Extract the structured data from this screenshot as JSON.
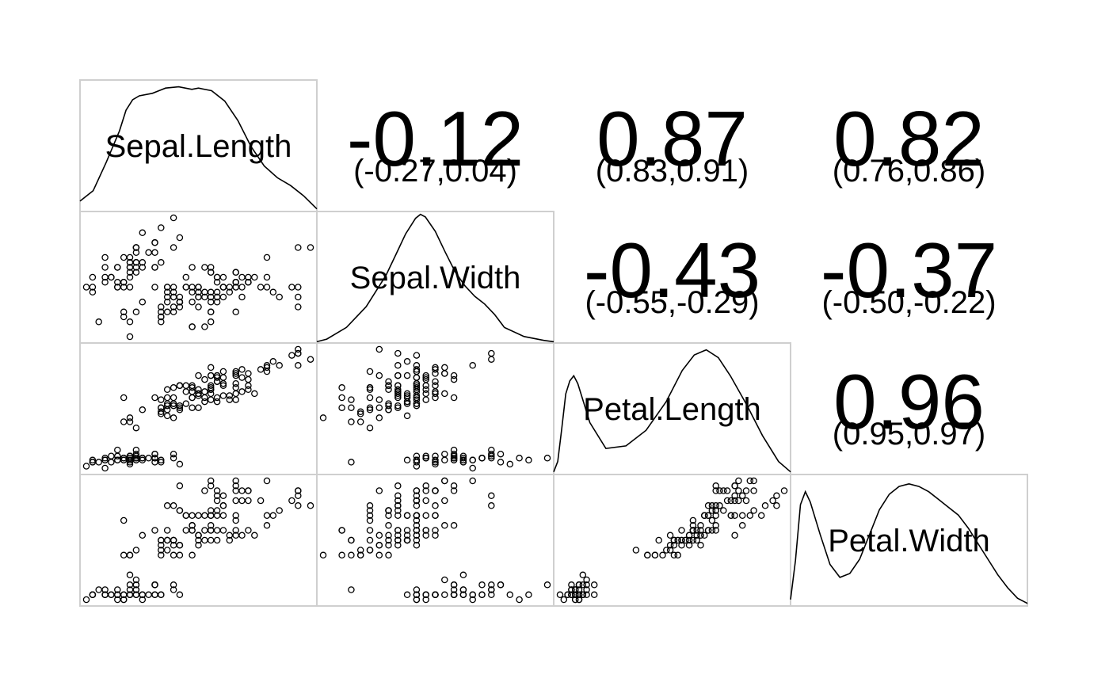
{
  "chart_data": {
    "type": "scatter-matrix",
    "variables": [
      {
        "name": "Sepal.Length",
        "range": [
          4.3,
          7.9
        ],
        "density": [
          [
            4.3,
            0.08
          ],
          [
            4.5,
            0.16
          ],
          [
            4.7,
            0.38
          ],
          [
            4.9,
            0.62
          ],
          [
            5.0,
            0.78
          ],
          [
            5.1,
            0.86
          ],
          [
            5.2,
            0.89
          ],
          [
            5.4,
            0.91
          ],
          [
            5.5,
            0.93
          ],
          [
            5.6,
            0.95
          ],
          [
            5.8,
            0.96
          ],
          [
            6.0,
            0.94
          ],
          [
            6.1,
            0.95
          ],
          [
            6.3,
            0.93
          ],
          [
            6.5,
            0.85
          ],
          [
            6.7,
            0.7
          ],
          [
            6.9,
            0.5
          ],
          [
            7.1,
            0.35
          ],
          [
            7.3,
            0.26
          ],
          [
            7.5,
            0.2
          ],
          [
            7.7,
            0.12
          ],
          [
            7.9,
            0.02
          ]
        ]
      },
      {
        "name": "Sepal.Width",
        "range": [
          2.0,
          4.4
        ],
        "density": [
          [
            2.0,
            0.01
          ],
          [
            2.1,
            0.03
          ],
          [
            2.3,
            0.12
          ],
          [
            2.5,
            0.28
          ],
          [
            2.7,
            0.52
          ],
          [
            2.8,
            0.68
          ],
          [
            2.9,
            0.84
          ],
          [
            3.0,
            0.96
          ],
          [
            3.05,
            0.99
          ],
          [
            3.1,
            0.97
          ],
          [
            3.2,
            0.86
          ],
          [
            3.3,
            0.7
          ],
          [
            3.4,
            0.55
          ],
          [
            3.5,
            0.44
          ],
          [
            3.6,
            0.36
          ],
          [
            3.7,
            0.3
          ],
          [
            3.8,
            0.22
          ],
          [
            3.9,
            0.12
          ],
          [
            4.1,
            0.05
          ],
          [
            4.3,
            0.02
          ],
          [
            4.4,
            0.01
          ]
        ]
      },
      {
        "name": "Petal.Length",
        "range": [
          1.0,
          6.9
        ],
        "density": [
          [
            1.0,
            0.02
          ],
          [
            1.1,
            0.1
          ],
          [
            1.2,
            0.35
          ],
          [
            1.3,
            0.62
          ],
          [
            1.4,
            0.72
          ],
          [
            1.5,
            0.76
          ],
          [
            1.6,
            0.7
          ],
          [
            1.7,
            0.6
          ],
          [
            1.9,
            0.4
          ],
          [
            2.3,
            0.2
          ],
          [
            2.8,
            0.22
          ],
          [
            3.3,
            0.34
          ],
          [
            3.8,
            0.56
          ],
          [
            4.2,
            0.8
          ],
          [
            4.5,
            0.92
          ],
          [
            4.8,
            0.96
          ],
          [
            5.1,
            0.9
          ],
          [
            5.4,
            0.76
          ],
          [
            5.8,
            0.54
          ],
          [
            6.2,
            0.3
          ],
          [
            6.6,
            0.1
          ],
          [
            6.9,
            0.02
          ]
        ]
      },
      {
        "name": "Petal.Width",
        "range": [
          0.1,
          2.5
        ],
        "density": [
          [
            0.1,
            0.05
          ],
          [
            0.15,
            0.35
          ],
          [
            0.2,
            0.78
          ],
          [
            0.25,
            0.88
          ],
          [
            0.3,
            0.8
          ],
          [
            0.4,
            0.55
          ],
          [
            0.5,
            0.32
          ],
          [
            0.6,
            0.22
          ],
          [
            0.7,
            0.25
          ],
          [
            0.8,
            0.36
          ],
          [
            0.9,
            0.55
          ],
          [
            1.0,
            0.74
          ],
          [
            1.1,
            0.86
          ],
          [
            1.2,
            0.92
          ],
          [
            1.3,
            0.94
          ],
          [
            1.4,
            0.92
          ],
          [
            1.5,
            0.88
          ],
          [
            1.6,
            0.82
          ],
          [
            1.7,
            0.76
          ],
          [
            1.8,
            0.7
          ],
          [
            1.9,
            0.6
          ],
          [
            2.0,
            0.48
          ],
          [
            2.1,
            0.36
          ],
          [
            2.2,
            0.24
          ],
          [
            2.3,
            0.14
          ],
          [
            2.4,
            0.06
          ],
          [
            2.5,
            0.02
          ]
        ]
      }
    ],
    "correlations": [
      {
        "row": 0,
        "col": 1,
        "r": "-0.12",
        "ci": "(-0.27,0.04)"
      },
      {
        "row": 0,
        "col": 2,
        "r": "0.87",
        "ci": "(0.83,0.91)"
      },
      {
        "row": 0,
        "col": 3,
        "r": "0.82",
        "ci": "(0.76,0.86)"
      },
      {
        "row": 1,
        "col": 2,
        "r": "-0.43",
        "ci": "(-0.55,-0.29)"
      },
      {
        "row": 1,
        "col": 3,
        "r": "-0.37",
        "ci": "(-0.50,-0.22)"
      },
      {
        "row": 2,
        "col": 3,
        "r": "0.96",
        "ci": "(0.95,0.97)"
      }
    ],
    "observations": [
      [
        5.1,
        3.5,
        1.4,
        0.2
      ],
      [
        4.9,
        3.0,
        1.4,
        0.2
      ],
      [
        4.7,
        3.2,
        1.3,
        0.2
      ],
      [
        4.6,
        3.1,
        1.5,
        0.2
      ],
      [
        5.0,
        3.6,
        1.4,
        0.2
      ],
      [
        5.4,
        3.9,
        1.7,
        0.4
      ],
      [
        4.6,
        3.4,
        1.4,
        0.3
      ],
      [
        5.0,
        3.4,
        1.5,
        0.2
      ],
      [
        4.4,
        2.9,
        1.4,
        0.2
      ],
      [
        4.9,
        3.1,
        1.5,
        0.1
      ],
      [
        5.4,
        3.7,
        1.5,
        0.2
      ],
      [
        4.8,
        3.4,
        1.6,
        0.2
      ],
      [
        4.8,
        3.0,
        1.4,
        0.1
      ],
      [
        4.3,
        3.0,
        1.1,
        0.1
      ],
      [
        5.8,
        4.0,
        1.2,
        0.2
      ],
      [
        5.7,
        4.4,
        1.5,
        0.4
      ],
      [
        5.4,
        3.9,
        1.3,
        0.4
      ],
      [
        5.1,
        3.5,
        1.4,
        0.3
      ],
      [
        5.7,
        3.8,
        1.7,
        0.3
      ],
      [
        5.1,
        3.8,
        1.5,
        0.3
      ],
      [
        5.4,
        3.4,
        1.7,
        0.2
      ],
      [
        5.1,
        3.7,
        1.5,
        0.4
      ],
      [
        4.6,
        3.6,
        1.0,
        0.2
      ],
      [
        5.1,
        3.3,
        1.7,
        0.5
      ],
      [
        4.8,
        3.4,
        1.9,
        0.2
      ],
      [
        5.0,
        3.0,
        1.6,
        0.2
      ],
      [
        5.0,
        3.4,
        1.6,
        0.4
      ],
      [
        5.2,
        3.5,
        1.5,
        0.2
      ],
      [
        5.2,
        3.4,
        1.4,
        0.2
      ],
      [
        4.7,
        3.2,
        1.6,
        0.2
      ],
      [
        4.8,
        3.1,
        1.6,
        0.2
      ],
      [
        5.4,
        3.4,
        1.5,
        0.4
      ],
      [
        5.2,
        4.1,
        1.5,
        0.1
      ],
      [
        5.5,
        4.2,
        1.4,
        0.2
      ],
      [
        4.9,
        3.1,
        1.5,
        0.2
      ],
      [
        5.0,
        3.2,
        1.2,
        0.2
      ],
      [
        5.5,
        3.5,
        1.3,
        0.2
      ],
      [
        4.9,
        3.6,
        1.4,
        0.1
      ],
      [
        4.4,
        3.0,
        1.3,
        0.2
      ],
      [
        5.1,
        3.4,
        1.5,
        0.2
      ],
      [
        5.0,
        3.5,
        1.3,
        0.3
      ],
      [
        4.5,
        2.3,
        1.3,
        0.3
      ],
      [
        4.4,
        3.2,
        1.3,
        0.2
      ],
      [
        5.0,
        3.5,
        1.6,
        0.6
      ],
      [
        5.1,
        3.8,
        1.9,
        0.4
      ],
      [
        4.8,
        3.0,
        1.4,
        0.3
      ],
      [
        5.1,
        3.8,
        1.6,
        0.2
      ],
      [
        4.6,
        3.2,
        1.4,
        0.2
      ],
      [
        5.3,
        3.7,
        1.5,
        0.2
      ],
      [
        5.0,
        3.3,
        1.4,
        0.2
      ],
      [
        7.0,
        3.2,
        4.7,
        1.4
      ],
      [
        6.4,
        3.2,
        4.5,
        1.5
      ],
      [
        6.9,
        3.1,
        4.9,
        1.5
      ],
      [
        5.5,
        2.3,
        4.0,
        1.3
      ],
      [
        6.5,
        2.8,
        4.6,
        1.5
      ],
      [
        5.7,
        2.8,
        4.5,
        1.3
      ],
      [
        6.3,
        3.3,
        4.7,
        1.6
      ],
      [
        4.9,
        2.4,
        3.3,
        1.0
      ],
      [
        6.6,
        2.9,
        4.6,
        1.3
      ],
      [
        5.2,
        2.7,
        3.9,
        1.4
      ],
      [
        5.0,
        2.0,
        3.5,
        1.0
      ],
      [
        5.9,
        3.0,
        4.2,
        1.5
      ],
      [
        6.0,
        2.2,
        4.0,
        1.0
      ],
      [
        6.1,
        2.9,
        4.7,
        1.4
      ],
      [
        5.6,
        2.9,
        3.6,
        1.3
      ],
      [
        6.7,
        3.1,
        4.4,
        1.4
      ],
      [
        5.6,
        3.0,
        4.5,
        1.5
      ],
      [
        5.8,
        2.7,
        4.1,
        1.0
      ],
      [
        6.2,
        2.2,
        4.5,
        1.5
      ],
      [
        5.6,
        2.5,
        3.9,
        1.1
      ],
      [
        5.9,
        3.2,
        4.8,
        1.8
      ],
      [
        6.1,
        2.8,
        4.0,
        1.3
      ],
      [
        6.3,
        2.5,
        4.9,
        1.5
      ],
      [
        6.1,
        2.8,
        4.7,
        1.2
      ],
      [
        6.4,
        2.9,
        4.3,
        1.3
      ],
      [
        6.6,
        3.0,
        4.4,
        1.4
      ],
      [
        6.8,
        2.8,
        4.8,
        1.4
      ],
      [
        6.7,
        3.0,
        5.0,
        1.7
      ],
      [
        6.0,
        2.9,
        4.5,
        1.5
      ],
      [
        5.7,
        2.6,
        3.5,
        1.0
      ],
      [
        5.5,
        2.4,
        3.8,
        1.1
      ],
      [
        5.5,
        2.4,
        3.7,
        1.0
      ],
      [
        5.8,
        2.7,
        3.9,
        1.2
      ],
      [
        6.0,
        2.7,
        5.1,
        1.6
      ],
      [
        5.4,
        3.0,
        4.5,
        1.5
      ],
      [
        6.0,
        3.4,
        4.5,
        1.6
      ],
      [
        6.7,
        3.1,
        4.7,
        1.5
      ],
      [
        6.3,
        2.3,
        4.4,
        1.3
      ],
      [
        5.6,
        3.0,
        4.1,
        1.3
      ],
      [
        5.5,
        2.5,
        4.0,
        1.3
      ],
      [
        5.5,
        2.6,
        4.4,
        1.2
      ],
      [
        6.1,
        3.0,
        4.6,
        1.4
      ],
      [
        5.8,
        2.6,
        4.0,
        1.2
      ],
      [
        5.0,
        2.3,
        3.3,
        1.0
      ],
      [
        5.6,
        2.7,
        4.2,
        1.3
      ],
      [
        5.7,
        3.0,
        4.2,
        1.2
      ],
      [
        5.7,
        2.9,
        4.2,
        1.3
      ],
      [
        6.2,
        2.9,
        4.3,
        1.3
      ],
      [
        5.1,
        2.5,
        3.0,
        1.1
      ],
      [
        5.7,
        2.8,
        4.1,
        1.3
      ],
      [
        6.3,
        3.3,
        6.0,
        2.5
      ],
      [
        5.8,
        2.7,
        5.1,
        1.9
      ],
      [
        7.1,
        3.0,
        5.9,
        2.1
      ],
      [
        6.3,
        2.9,
        5.6,
        1.8
      ],
      [
        6.5,
        3.0,
        5.8,
        2.2
      ],
      [
        7.6,
        3.0,
        6.6,
        2.1
      ],
      [
        4.9,
        2.5,
        4.5,
        1.7
      ],
      [
        7.3,
        2.9,
        6.3,
        1.8
      ],
      [
        6.7,
        2.5,
        5.8,
        1.8
      ],
      [
        7.2,
        3.6,
        6.1,
        2.5
      ],
      [
        6.5,
        3.2,
        5.1,
        2.0
      ],
      [
        6.4,
        2.7,
        5.3,
        1.9
      ],
      [
        6.8,
        3.0,
        5.5,
        2.1
      ],
      [
        5.7,
        2.5,
        5.0,
        2.0
      ],
      [
        5.8,
        2.8,
        5.1,
        2.4
      ],
      [
        6.4,
        3.2,
        5.3,
        2.3
      ],
      [
        6.5,
        3.0,
        5.5,
        1.8
      ],
      [
        7.7,
        3.8,
        6.7,
        2.2
      ],
      [
        7.7,
        2.6,
        6.9,
        2.3
      ],
      [
        6.0,
        2.2,
        5.0,
        1.5
      ],
      [
        6.9,
        3.2,
        5.7,
        2.3
      ],
      [
        5.6,
        2.8,
        4.9,
        2.0
      ],
      [
        7.7,
        2.8,
        6.7,
        2.0
      ],
      [
        6.3,
        2.7,
        4.9,
        1.8
      ],
      [
        6.7,
        3.3,
        5.7,
        2.1
      ],
      [
        7.2,
        3.2,
        6.0,
        1.8
      ],
      [
        6.2,
        2.8,
        4.8,
        1.8
      ],
      [
        6.1,
        3.0,
        4.9,
        1.8
      ],
      [
        6.4,
        2.8,
        5.6,
        2.1
      ],
      [
        7.2,
        3.0,
        5.8,
        1.6
      ],
      [
        7.4,
        2.8,
        6.1,
        1.9
      ],
      [
        7.9,
        3.8,
        6.4,
        2.0
      ],
      [
        6.4,
        2.8,
        5.6,
        2.2
      ],
      [
        6.3,
        2.8,
        5.1,
        1.5
      ],
      [
        6.1,
        2.6,
        5.6,
        1.4
      ],
      [
        7.7,
        3.0,
        6.1,
        2.3
      ],
      [
        6.3,
        3.4,
        5.6,
        2.4
      ],
      [
        6.4,
        3.1,
        5.5,
        1.8
      ],
      [
        6.0,
        3.0,
        4.8,
        1.8
      ],
      [
        6.9,
        3.1,
        5.4,
        2.1
      ],
      [
        6.7,
        3.1,
        5.6,
        2.4
      ],
      [
        6.9,
        3.1,
        5.1,
        2.3
      ],
      [
        5.8,
        2.7,
        5.1,
        1.9
      ],
      [
        6.8,
        3.2,
        5.9,
        2.3
      ],
      [
        6.7,
        3.3,
        5.7,
        2.5
      ],
      [
        6.7,
        3.0,
        5.2,
        2.3
      ],
      [
        6.3,
        2.5,
        5.0,
        1.9
      ],
      [
        6.5,
        3.0,
        5.2,
        2.0
      ],
      [
        6.2,
        3.4,
        5.4,
        2.3
      ],
      [
        5.9,
        3.0,
        5.1,
        1.8
      ]
    ]
  }
}
